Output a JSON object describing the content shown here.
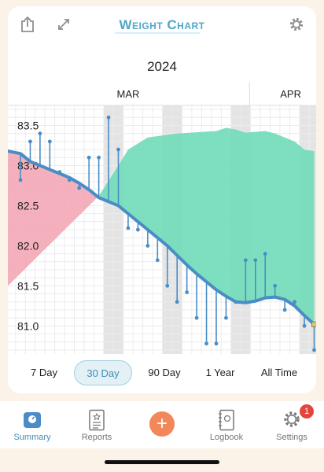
{
  "app": {
    "title": "Weight Chart",
    "year": "2024"
  },
  "toolbar": {
    "share_icon": "share-icon",
    "expand_icon": "expand-icon",
    "settings_icon": "gear-icon"
  },
  "chart_data": {
    "type": "line",
    "month_labels": [
      "MAR",
      "APR"
    ],
    "y_ticks": [
      "83.5",
      "83.0",
      "82.5",
      "82.0",
      "81.5",
      "81.0"
    ],
    "ylim": [
      80.65,
      83.75
    ],
    "n_days": 31,
    "series": [
      {
        "values": [
          83.15,
          83.05,
          83.0,
          82.95,
          82.9,
          82.85,
          82.78,
          82.7,
          82.6,
          82.55,
          82.5,
          82.4,
          82.3,
          82.2,
          82.1,
          82.0,
          81.88,
          81.76,
          81.65,
          81.55,
          81.45,
          81.37,
          81.3,
          81.29,
          81.31,
          81.35,
          81.36,
          81.33,
          81.25,
          81.13,
          81.02
        ]
      }
    ],
    "readings": [
      {
        "day": 1,
        "value": 82.82
      },
      {
        "day": 2,
        "value": 83.3
      },
      {
        "day": 3,
        "value": 83.4
      },
      {
        "day": 4,
        "value": 83.3
      },
      {
        "day": 5,
        "value": 82.92
      },
      {
        "day": 6,
        "value": 82.82
      },
      {
        "day": 7,
        "value": 82.72
      },
      {
        "day": 8,
        "value": 83.1
      },
      {
        "day": 9,
        "value": 83.1
      },
      {
        "day": 10,
        "value": 83.6
      },
      {
        "day": 11,
        "value": 83.2
      },
      {
        "day": 12,
        "value": 82.22
      },
      {
        "day": 13,
        "value": 82.2
      },
      {
        "day": 14,
        "value": 82.0
      },
      {
        "day": 15,
        "value": 81.82
      },
      {
        "day": 16,
        "value": 81.5
      },
      {
        "day": 17,
        "value": 81.3
      },
      {
        "day": 18,
        "value": 81.42
      },
      {
        "day": 19,
        "value": 81.1
      },
      {
        "day": 20,
        "value": 80.78
      },
      {
        "day": 21,
        "value": 80.78
      },
      {
        "day": 22,
        "value": 81.1
      },
      {
        "day": 23,
        "value": 81.3
      },
      {
        "day": 24,
        "value": 81.82
      },
      {
        "day": 25,
        "value": 81.82
      },
      {
        "day": 26,
        "value": 81.9
      },
      {
        "day": 27,
        "value": 81.5
      },
      {
        "day": 28,
        "value": 81.2
      },
      {
        "day": 29,
        "value": 81.3
      },
      {
        "day": 30,
        "value": 81.0
      },
      {
        "day": 31,
        "value": 80.7
      }
    ],
    "colors": {
      "trend": "#4a8dc6",
      "loss_fill": "#6fdcb8",
      "gain_fill": "#f2a2b2",
      "weekend_band": "#e4e4e4",
      "grid": "#ececec",
      "last_marker": "#f5c242"
    }
  },
  "ranges": [
    "7 Day",
    "30 Day",
    "90 Day",
    "1 Year",
    "All Time"
  ],
  "active_range": "30 Day",
  "tabs": [
    {
      "label": "Summary",
      "icon": "scale-icon",
      "active": true
    },
    {
      "label": "Reports",
      "icon": "report-icon"
    },
    {
      "label": "Logbook",
      "icon": "logbook-icon"
    },
    {
      "label": "Settings",
      "icon": "gear-icon",
      "badge": "1"
    }
  ],
  "add_button_icon": "plus-icon"
}
